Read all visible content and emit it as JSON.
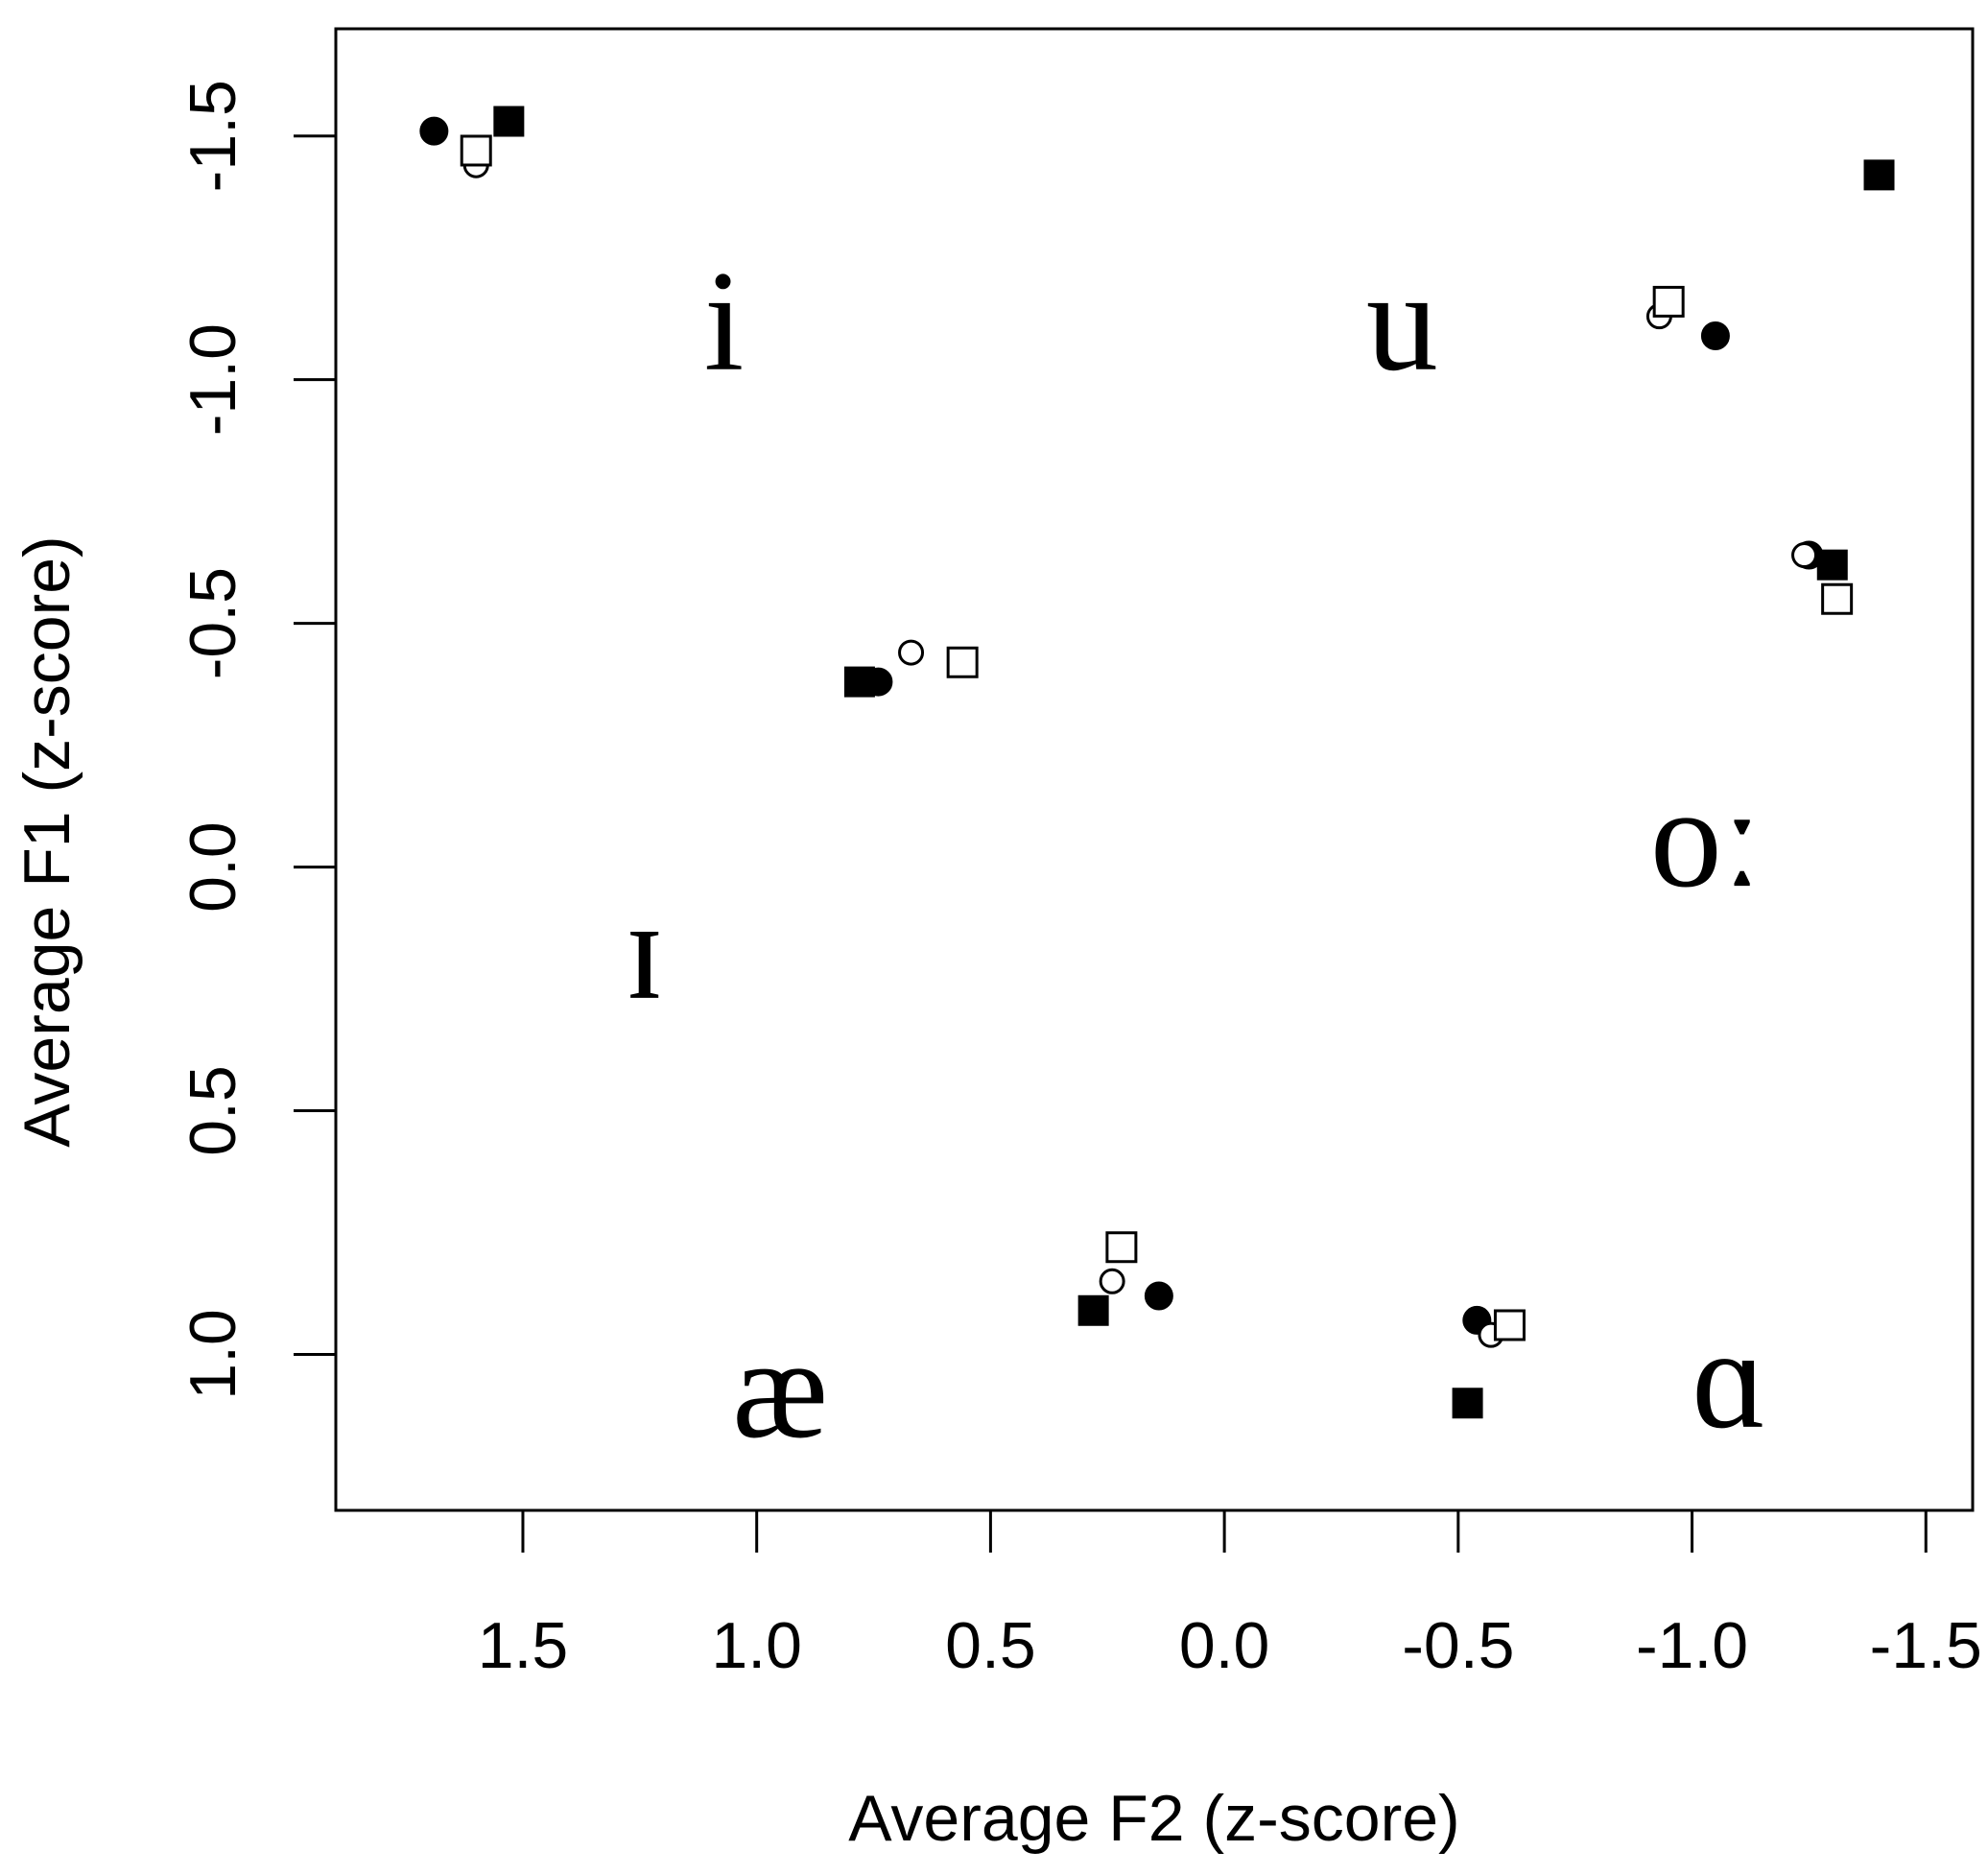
{
  "chart_data": {
    "type": "scatter",
    "title": "",
    "xlabel": "Average F2 (z-score)",
    "ylabel": "Average F1 (z-score)",
    "xlim": [
      1.9,
      -1.6
    ],
    "ylim": [
      -1.72,
      1.32
    ],
    "x_reversed": true,
    "y_reversed": true,
    "x_ticks": [
      {
        "value": 1.5,
        "label": "1.5"
      },
      {
        "value": 1.0,
        "label": "1.0"
      },
      {
        "value": 0.5,
        "label": "0.5"
      },
      {
        "value": 0.0,
        "label": "0.0"
      },
      {
        "value": -0.5,
        "label": "-0.5"
      },
      {
        "value": -1.0,
        "label": "-1.0"
      },
      {
        "value": -1.5,
        "label": "-1.5"
      }
    ],
    "y_ticks": [
      {
        "value": -1.5,
        "label": "-1.5"
      },
      {
        "value": -1.0,
        "label": "-1.0"
      },
      {
        "value": -0.5,
        "label": "-0.5"
      },
      {
        "value": 0.0,
        "label": "0.0"
      },
      {
        "value": 0.5,
        "label": "0.5"
      },
      {
        "value": 1.0,
        "label": "1.0"
      }
    ],
    "grid": false,
    "legend": "none",
    "vowel_labels": [
      {
        "text": "i",
        "x": 1.07,
        "y": -1.12
      },
      {
        "text": "u",
        "x": -0.38,
        "y": -1.12
      },
      {
        "text": "ɪ",
        "x": 1.24,
        "y": 0.17
      },
      {
        "text": "oː",
        "x": -1.03,
        "y": -0.06
      },
      {
        "text": "æ",
        "x": 0.95,
        "y": 1.07
      },
      {
        "text": "ɑ",
        "x": -1.08,
        "y": 1.05
      }
    ],
    "series": [
      {
        "marker": "filled-circle",
        "points": [
          {
            "x": 1.69,
            "y": -1.51
          },
          {
            "x": -1.05,
            "y": -1.09
          },
          {
            "x": 0.74,
            "y": -0.38
          },
          {
            "x": -1.25,
            "y": -0.64
          },
          {
            "x": 0.14,
            "y": 0.88
          },
          {
            "x": -0.54,
            "y": 0.93
          }
        ]
      },
      {
        "marker": "open-circle",
        "points": [
          {
            "x": 1.6,
            "y": -1.44
          },
          {
            "x": -0.93,
            "y": -1.13
          },
          {
            "x": 0.67,
            "y": -0.44
          },
          {
            "x": -1.24,
            "y": -0.64
          },
          {
            "x": 0.24,
            "y": 0.85
          },
          {
            "x": -0.57,
            "y": 0.96
          }
        ]
      },
      {
        "marker": "filled-square",
        "points": [
          {
            "x": 1.53,
            "y": -1.53
          },
          {
            "x": -1.4,
            "y": -1.42
          },
          {
            "x": 0.78,
            "y": -0.38
          },
          {
            "x": -1.3,
            "y": -0.62
          },
          {
            "x": 0.28,
            "y": 0.91
          },
          {
            "x": -0.52,
            "y": 1.1
          }
        ]
      },
      {
        "marker": "open-square",
        "points": [
          {
            "x": 1.6,
            "y": -1.47
          },
          {
            "x": -0.95,
            "y": -1.16
          },
          {
            "x": 0.56,
            "y": -0.42
          },
          {
            "x": -1.31,
            "y": -0.55
          },
          {
            "x": 0.22,
            "y": 0.78
          },
          {
            "x": -0.61,
            "y": 0.94
          }
        ]
      }
    ]
  }
}
